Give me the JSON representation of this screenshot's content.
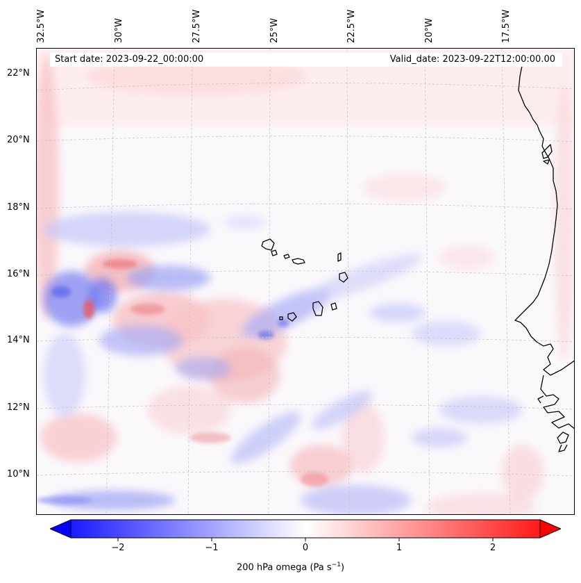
{
  "map": {
    "start_date": "Start date: 2023-09-22_00:00:00",
    "valid_date": "Valid_date: 2023-09-22T12:00:00.00",
    "lon_labels": [
      "32.5°W",
      "30°W",
      "27.5°W",
      "25°W",
      "22.5°W",
      "20°W",
      "17.5°W"
    ],
    "lat_labels": [
      "22°N",
      "20°N",
      "18°N",
      "16°N",
      "14°N",
      "12°N",
      "10°N"
    ],
    "field": "200 hPa omega",
    "region": "Cape Verde and West African coast"
  },
  "colorbar": {
    "label_main": "200 hPa omega (Pa s",
    "label_exp": "−1",
    "label_close": ")",
    "ticks": [
      "−2",
      "−1",
      "0",
      "1",
      "2"
    ],
    "tick_values": [
      -2,
      -1,
      0,
      1,
      2
    ],
    "range": [
      -2.5,
      2.5
    ],
    "colormap": "bwr",
    "color_low": "#0000ff",
    "color_mid": "#ffffff",
    "color_high": "#ff0000"
  }
}
